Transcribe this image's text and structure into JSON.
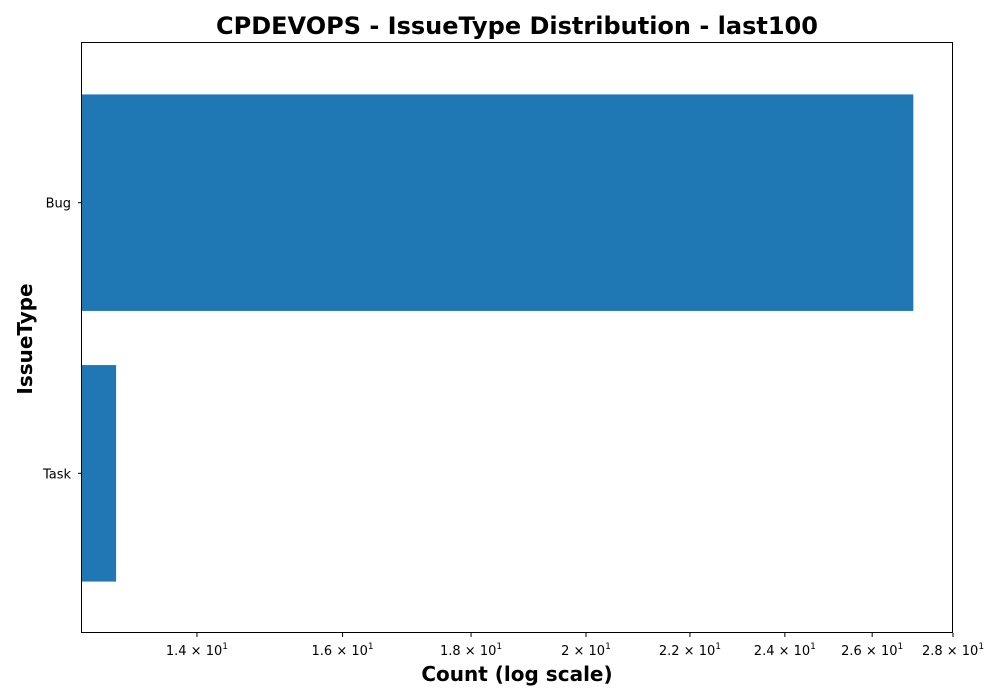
{
  "chart_data": {
    "type": "bar",
    "orientation": "horizontal",
    "title": "CPDEVOPS - IssueType Distribution - last100",
    "xlabel": "Count (log scale)",
    "ylabel": "IssueType",
    "x_scale": "log",
    "xlim": [
      12.6,
      28
    ],
    "categories": [
      "Bug",
      "Task"
    ],
    "values": [
      27,
      13
    ],
    "x_ticks": [
      {
        "value": 14,
        "mantissa": "1.4",
        "base": "10",
        "exp": "1"
      },
      {
        "value": 16,
        "mantissa": "1.6",
        "base": "10",
        "exp": "1"
      },
      {
        "value": 18,
        "mantissa": "1.8",
        "base": "10",
        "exp": "1"
      },
      {
        "value": 20,
        "mantissa": "2",
        "base": "10",
        "exp": "1"
      },
      {
        "value": 22,
        "mantissa": "2.2",
        "base": "10",
        "exp": "1"
      },
      {
        "value": 24,
        "mantissa": "2.4",
        "base": "10",
        "exp": "1"
      },
      {
        "value": 26,
        "mantissa": "2.6",
        "base": "10",
        "exp": "1"
      },
      {
        "value": 28,
        "mantissa": "2.8",
        "base": "10",
        "exp": "1"
      }
    ],
    "grid": false,
    "legend": "none",
    "bar_color": "#1f77b4"
  }
}
